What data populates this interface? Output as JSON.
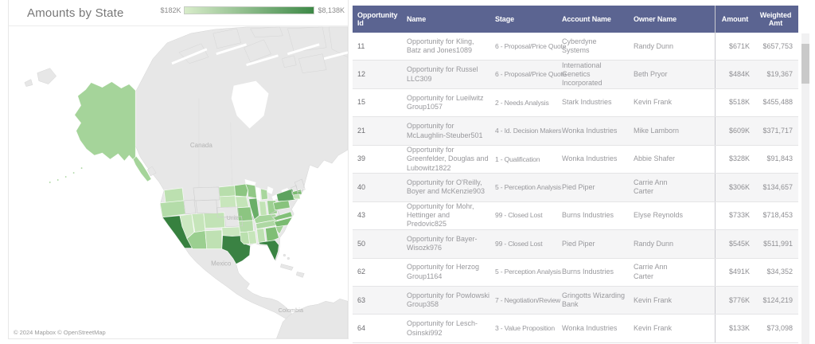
{
  "colors": {
    "header_bg": "#5b6491",
    "row_stripe": "#f5f5f6",
    "land": "#e7e7e7",
    "ocean": "#ffffff"
  },
  "map": {
    "title": "Amounts by State",
    "legend_min": "$182K",
    "legend_max": "$8,138K",
    "legend_gradient": [
      "#d8ecca",
      "#3d8947"
    ],
    "attribution": "© 2024 Mapbox © OpenStreetMap",
    "labels": {
      "canada": "Canada",
      "united_states": "United States",
      "mexico": "Mexico",
      "colombia": "Colombia"
    },
    "state_fills": {
      "AK": "#a5d49a",
      "WA": "#bce0b0",
      "OR": "#b4dca9",
      "CA": "#37813f",
      "NV": "#cde8c2",
      "UT": "#c6e5ba",
      "AZ": "#9bcf90",
      "CO": "#c2e3b6",
      "NM": "#bfe1b3",
      "ND": "#b8deac",
      "SD": "#c8e6bc",
      "OK": "#cae7bf",
      "TX": "#3a8243",
      "MN": "#8cc581",
      "IA": "#c4e4b8",
      "MO": "#8cc581",
      "AR": "#b6dcab",
      "LA": "#bae0ae",
      "WI": "#92c887",
      "IL": "#6aae68",
      "MI": "#a8d69d",
      "IN": "#c2e3b6",
      "OH": "#9dd092",
      "KY": "#a6d59b",
      "TN": "#aed8a3",
      "MS": "#c6e5ba",
      "AL": "#bee1b2",
      "GA": "#7fbe75",
      "FL": "#398342",
      "SC": "#a3d398",
      "NC": "#7abb71",
      "VA": "#82c078",
      "PA": "#88c37d",
      "NY": "#5da35f",
      "MA": "#7abb71",
      "CT": "#bee1b2",
      "ID": null,
      "MT": null,
      "WY": null,
      "NE": null,
      "KS": null,
      "WV": null,
      "ME": null,
      "VT": null
    }
  },
  "table": {
    "columns": [
      "Opportunity Id",
      "Name",
      "Stage",
      "Account Name",
      "Owner Name",
      "Amount",
      "Weighted Amt"
    ],
    "rows": [
      {
        "id": "11",
        "name": "Opportunity for Kling, Batz and Jones1089",
        "stage": "6 - Proposal/Price Quote",
        "account": "Cyberdyne Systems",
        "owner": "Randy Dunn",
        "amount": "$671K",
        "weighted": "$657,753"
      },
      {
        "id": "12",
        "name": "Opportunity for Russel LLC309",
        "stage": "6 - Proposal/Price Quote",
        "account": "International Genetics Incorporated",
        "owner": "Beth Pryor",
        "amount": "$484K",
        "weighted": "$19,367"
      },
      {
        "id": "15",
        "name": "Opportunity for Lueilwitz Group1057",
        "stage": "2 - Needs Analysis",
        "account": "Stark Industries",
        "owner": "Kevin Frank",
        "amount": "$518K",
        "weighted": "$455,488"
      },
      {
        "id": "21",
        "name": "Opportunity for McLaughlin-Steuber501",
        "stage": "4 - Id. Decision Makers",
        "account": "Wonka Industries",
        "owner": "Mike Lamborn",
        "amount": "$609K",
        "weighted": "$371,717"
      },
      {
        "id": "39",
        "name": "Opportunity for Greenfelder, Douglas and Lubowitz1822",
        "stage": "1 - Qualification",
        "account": "Wonka Industries",
        "owner": "Abbie Shafer",
        "amount": "$328K",
        "weighted": "$91,843"
      },
      {
        "id": "40",
        "name": "Opportunity for O'Reilly, Boyer and McKenzie903",
        "stage": "5 - Perception Analysis",
        "account": "Pied Piper",
        "owner": "Carrie Ann Carter",
        "amount": "$306K",
        "weighted": "$134,657"
      },
      {
        "id": "43",
        "name": "Opportunity for Mohr, Hettinger and Predovic825",
        "stage": "99 - Closed Lost",
        "account": "Burns Industries",
        "owner": "Elyse Reynolds",
        "amount": "$733K",
        "weighted": "$718,453"
      },
      {
        "id": "50",
        "name": "Opportunity for Bayer-Wisozk976",
        "stage": "99 - Closed Lost",
        "account": "Pied Piper",
        "owner": "Randy Dunn",
        "amount": "$545K",
        "weighted": "$511,991"
      },
      {
        "id": "62",
        "name": "Opportunity for Herzog Group1164",
        "stage": "5 - Perception Analysis",
        "account": "Burns Industries",
        "owner": "Carrie Ann Carter",
        "amount": "$491K",
        "weighted": "$34,352"
      },
      {
        "id": "63",
        "name": "Opportunity for Powlowski Group358",
        "stage": "7 - Negotiation/Review",
        "account": "Gringotts Wizarding Bank",
        "owner": "Kevin Frank",
        "amount": "$776K",
        "weighted": "$124,219"
      },
      {
        "id": "64",
        "name": "Opportunity for Lesch-Osinski992",
        "stage": "3 - Value Proposition",
        "account": "Wonka Industries",
        "owner": "Kevin Frank",
        "amount": "$133K",
        "weighted": "$73,098"
      }
    ]
  }
}
